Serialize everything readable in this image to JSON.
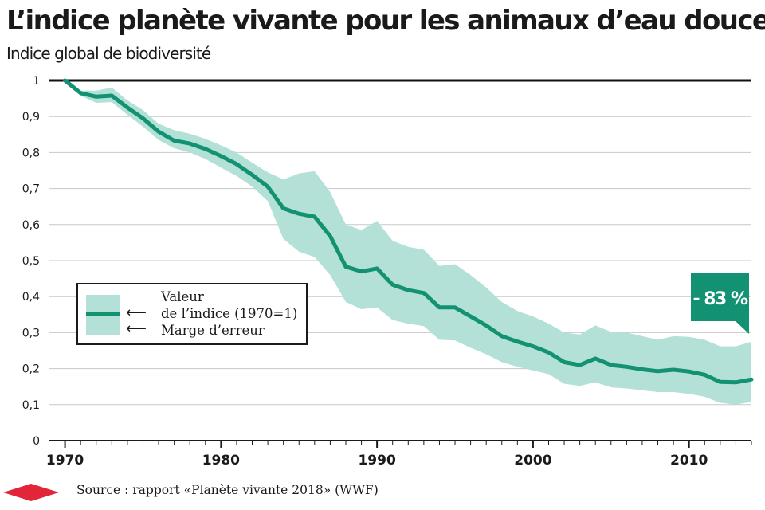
{
  "title": "L’indice planète vivante pour les animaux d’eau douce",
  "subtitle": "Indice global de biodiversité",
  "colors": {
    "band": "#b3e0d7",
    "line": "#139273",
    "callout": "#139273",
    "diamond": "#e3253a",
    "grid": "#c8c8c8",
    "reference": "#111111"
  },
  "legend": {
    "series_label_1": "Valeur",
    "series_label_2": "de l’indice (1970=1)",
    "band_label": "Marge d’erreur",
    "arrow": "⟵"
  },
  "callout": "- 83 %",
  "source": "Source : rapport «Planète vivante 2018» (WWF)",
  "chart_data": {
    "type": "area",
    "xlim": [
      1969,
      2014
    ],
    "ylim": [
      0,
      1
    ],
    "x_ticks": [
      1970,
      1980,
      1990,
      2000,
      2010
    ],
    "y_ticks": [
      {
        "value": 0,
        "label": "0"
      },
      {
        "value": 0.1,
        "label": "0,1"
      },
      {
        "value": 0.2,
        "label": "0,2"
      },
      {
        "value": 0.3,
        "label": "0,3"
      },
      {
        "value": 0.4,
        "label": "0,4"
      },
      {
        "value": 0.5,
        "label": "0,5"
      },
      {
        "value": 0.6,
        "label": "0,6"
      },
      {
        "value": 0.7,
        "label": "0,7"
      },
      {
        "value": 0.8,
        "label": "0,8"
      },
      {
        "value": 0.9,
        "label": "0,9"
      },
      {
        "value": 1,
        "label": "1"
      }
    ],
    "reference_line": 1,
    "grid": true,
    "x": [
      1970,
      1971,
      1972,
      1973,
      1974,
      1975,
      1976,
      1977,
      1978,
      1979,
      1980,
      1981,
      1982,
      1983,
      1984,
      1985,
      1986,
      1987,
      1988,
      1989,
      1990,
      1991,
      1992,
      1993,
      1994,
      1995,
      1996,
      1997,
      1998,
      1999,
      2000,
      2001,
      2002,
      2003,
      2004,
      2005,
      2006,
      2007,
      2008,
      2009,
      2010,
      2011,
      2012,
      2013,
      2014
    ],
    "series": [
      {
        "values": [
          1.0,
          0.965,
          0.955,
          0.958,
          0.925,
          0.895,
          0.858,
          0.833,
          0.825,
          0.81,
          0.79,
          0.768,
          0.738,
          0.705,
          0.645,
          0.63,
          0.622,
          0.568,
          0.483,
          0.47,
          0.478,
          0.433,
          0.418,
          0.41,
          0.37,
          0.37,
          0.345,
          0.32,
          0.29,
          0.275,
          0.262,
          0.245,
          0.218,
          0.21,
          0.228,
          0.21,
          0.205,
          0.198,
          0.193,
          0.197,
          0.192,
          0.183,
          0.163,
          0.162,
          0.17
        ]
      },
      {
        "lower": [
          1.0,
          0.958,
          0.938,
          0.94,
          0.905,
          0.872,
          0.835,
          0.812,
          0.8,
          0.782,
          0.758,
          0.735,
          0.705,
          0.665,
          0.56,
          0.525,
          0.51,
          0.46,
          0.385,
          0.365,
          0.37,
          0.335,
          0.325,
          0.318,
          0.28,
          0.278,
          0.258,
          0.24,
          0.218,
          0.205,
          0.195,
          0.185,
          0.158,
          0.152,
          0.162,
          0.148,
          0.145,
          0.14,
          0.135,
          0.135,
          0.13,
          0.122,
          0.105,
          0.1,
          0.108
        ],
        "upper": [
          1.0,
          0.972,
          0.972,
          0.98,
          0.945,
          0.918,
          0.88,
          0.862,
          0.852,
          0.838,
          0.82,
          0.8,
          0.772,
          0.745,
          0.725,
          0.742,
          0.748,
          0.69,
          0.6,
          0.585,
          0.61,
          0.555,
          0.538,
          0.53,
          0.485,
          0.49,
          0.46,
          0.425,
          0.385,
          0.36,
          0.345,
          0.325,
          0.3,
          0.295,
          0.32,
          0.302,
          0.3,
          0.29,
          0.28,
          0.29,
          0.288,
          0.28,
          0.262,
          0.262,
          0.275
        ]
      }
    ]
  }
}
